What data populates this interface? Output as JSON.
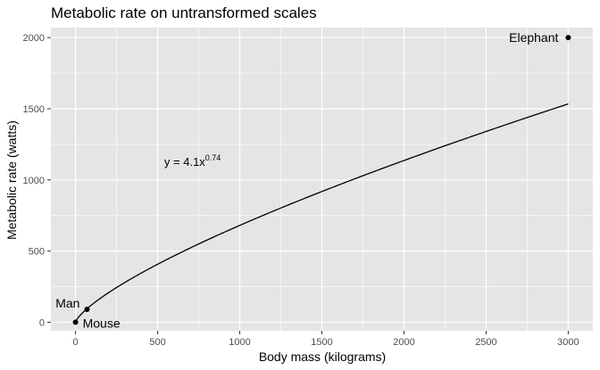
{
  "chart_data": {
    "type": "scatter",
    "title": "Metabolic rate on untransformed scales",
    "xlabel": "Body mass (kilograms)",
    "ylabel": "Metabolic rate (watts)",
    "xlim": [
      -150,
      3150
    ],
    "ylim": [
      -60,
      2070
    ],
    "x_ticks": [
      0,
      500,
      1000,
      1500,
      2000,
      2500,
      3000
    ],
    "y_ticks": [
      0,
      500,
      1000,
      1500,
      2000
    ],
    "grid": true,
    "background": "#e5e5e5",
    "gridline_color": "#ffffff",
    "points": [
      {
        "label": "Mouse",
        "x": 0.02,
        "y": 0.22
      },
      {
        "label": "Man",
        "x": 70,
        "y": 90
      },
      {
        "label": "Elephant",
        "x": 3000,
        "y": 2000
      }
    ],
    "curve": {
      "type": "power",
      "coefficient": 4.1,
      "exponent": 0.74,
      "x_range": [
        0,
        3000
      ],
      "label_base": "y = 4.1x",
      "label_exponent": "0.74",
      "label_position": {
        "x": 540,
        "y": 1100
      }
    }
  }
}
